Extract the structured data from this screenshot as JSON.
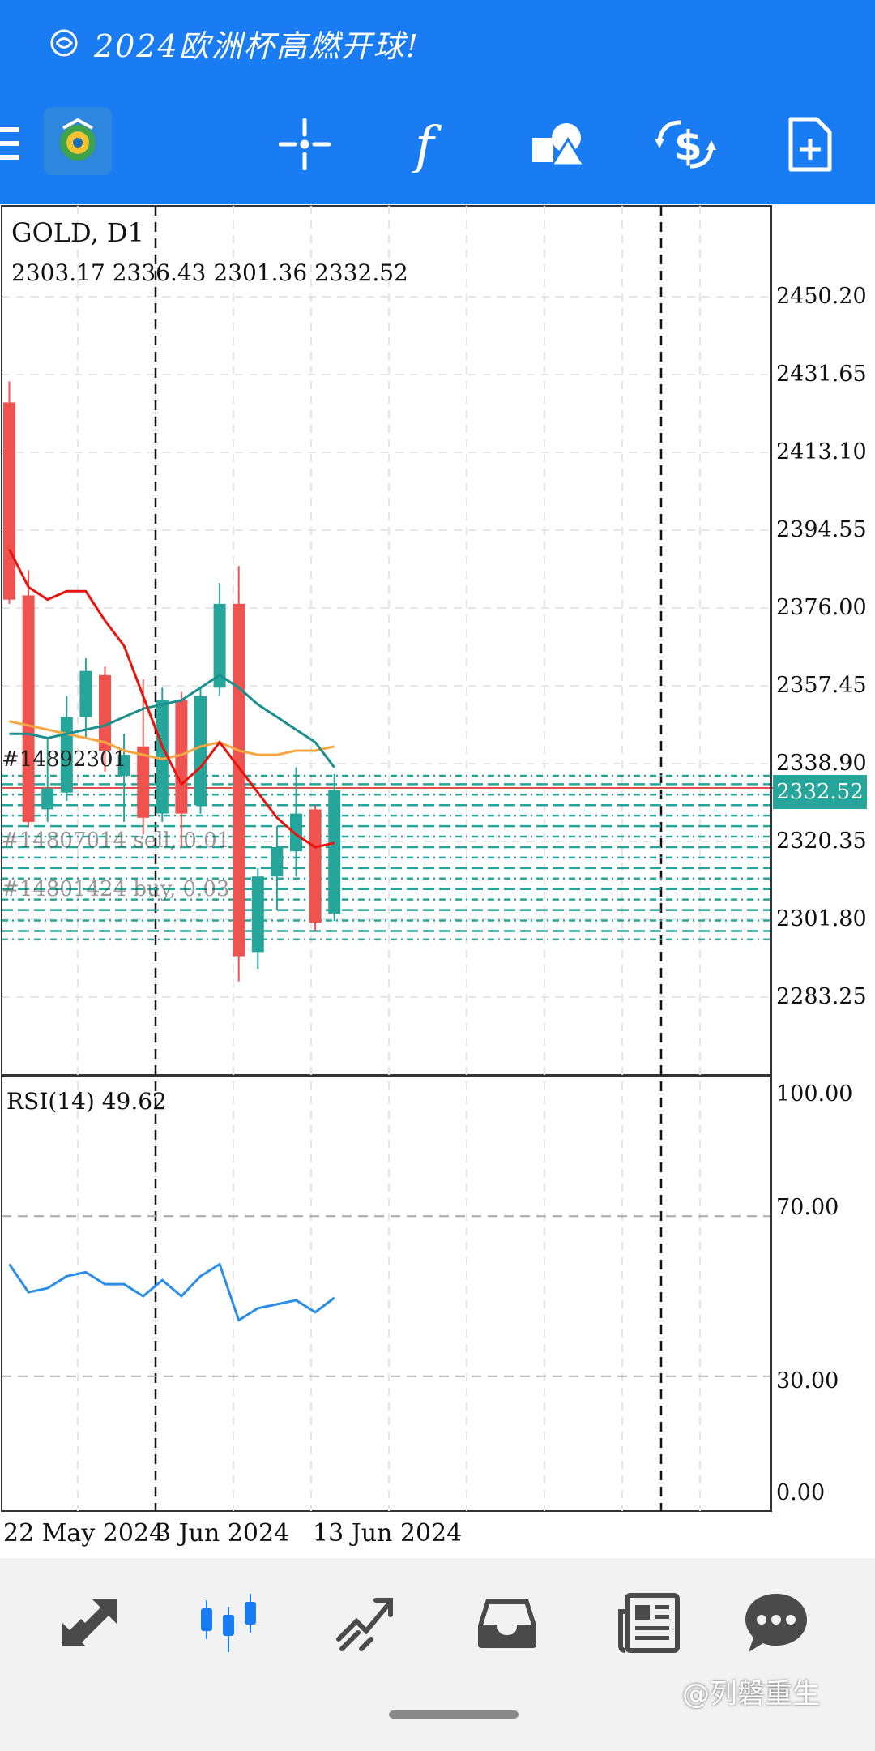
{
  "banner": {
    "text": "2024欧洲杯高燃开球!"
  },
  "toolbar": {
    "items": [
      "menu-icon",
      "app-logo",
      "crosshair-icon",
      "function-icon",
      "objects-icon",
      "trade-dollar-icon",
      "new-document-icon"
    ]
  },
  "chart": {
    "symbol": "GOLD, D1",
    "ohlc": "2303.17 2336.43 2301.36 2332.52",
    "bid": "2332.52",
    "price_ticks": [
      "2450.20",
      "2431.65",
      "2413.10",
      "2394.55",
      "2376.00",
      "2357.45",
      "2338.90",
      "2320.35",
      "2301.80",
      "2283.25"
    ],
    "order_labels": [
      "#14892301",
      "#14807014 sell, 0.01",
      "#14801424 buy, 0.03"
    ],
    "rsi_label": "RSI(14) 49.62",
    "rsi_ticks": [
      "100.00",
      "70.00",
      "30.00",
      "0.00"
    ],
    "dates": [
      "22 May 2024",
      "3 Jun 2024",
      "13 Jun 2024"
    ],
    "colors": {
      "bull": "#26a69a",
      "bear": "#ef5350",
      "ma_fast": "#e8150f",
      "ma_mid": "#1a8f8f",
      "ma_slow": "#f5a742",
      "rsi": "#2a8ee6"
    }
  },
  "chart_data": {
    "type": "candlestick",
    "title": "GOLD, D1",
    "ylim": [
      2270,
      2460
    ],
    "candles": [
      {
        "o": 2425,
        "h": 2430,
        "l": 2377,
        "c": 2378
      },
      {
        "o": 2379,
        "h": 2385,
        "l": 2324,
        "c": 2325
      },
      {
        "o": 2328,
        "h": 2345,
        "l": 2325,
        "c": 2333
      },
      {
        "o": 2332,
        "h": 2355,
        "l": 2330,
        "c": 2350
      },
      {
        "o": 2350,
        "h": 2364,
        "l": 2345,
        "c": 2361
      },
      {
        "o": 2360,
        "h": 2362,
        "l": 2337,
        "c": 2342
      },
      {
        "o": 2336,
        "h": 2346,
        "l": 2325,
        "c": 2341
      },
      {
        "o": 2343,
        "h": 2359,
        "l": 2322,
        "c": 2326
      },
      {
        "o": 2327,
        "h": 2357,
        "l": 2325,
        "c": 2354
      },
      {
        "o": 2354,
        "h": 2356,
        "l": 2319,
        "c": 2327
      },
      {
        "o": 2329,
        "h": 2357,
        "l": 2327,
        "c": 2355
      },
      {
        "o": 2357,
        "h": 2382,
        "l": 2355,
        "c": 2377
      },
      {
        "o": 2377,
        "h": 2386,
        "l": 2287,
        "c": 2293
      },
      {
        "o": 2294,
        "h": 2314,
        "l": 2290,
        "c": 2312
      },
      {
        "o": 2312,
        "h": 2324,
        "l": 2304,
        "c": 2319
      },
      {
        "o": 2318,
        "h": 2338,
        "l": 2312,
        "c": 2327
      },
      {
        "o": 2328,
        "h": 2329,
        "l": 2299,
        "c": 2301
      },
      {
        "o": 2303.17,
        "h": 2336.43,
        "l": 2301.36,
        "c": 2332.52
      }
    ],
    "ma_fast": [
      2390,
      2381,
      2378,
      2380,
      2380,
      2373,
      2367,
      2355,
      2343,
      2334,
      2338,
      2344,
      2338,
      2332,
      2326,
      2322,
      2319,
      2320
    ],
    "ma_mid": [
      2346,
      2346,
      2345,
      2346,
      2347,
      2348,
      2350,
      2352,
      2353,
      2354,
      2357,
      2360,
      2357,
      2353,
      2350,
      2347,
      2344,
      2338
    ],
    "ma_slow": [
      2349,
      2348,
      2347,
      2346,
      2345,
      2344,
      2342,
      2341,
      2340,
      2341,
      2343,
      2344,
      2342,
      2341,
      2341,
      2342,
      2342,
      2343
    ],
    "rsi": [
      58,
      51,
      52,
      55,
      56,
      53,
      53,
      50,
      54,
      50,
      55,
      58,
      44,
      47,
      48,
      49,
      46,
      49.62
    ],
    "rsi_levels": [
      70,
      30
    ],
    "rsi_ylim": [
      0,
      100
    ]
  },
  "bottom_nav": {
    "items": [
      "quotes-icon",
      "chart-icon",
      "trade-icon",
      "history-icon",
      "news-icon",
      "messages-icon"
    ]
  },
  "watermark": "@列磐重生"
}
